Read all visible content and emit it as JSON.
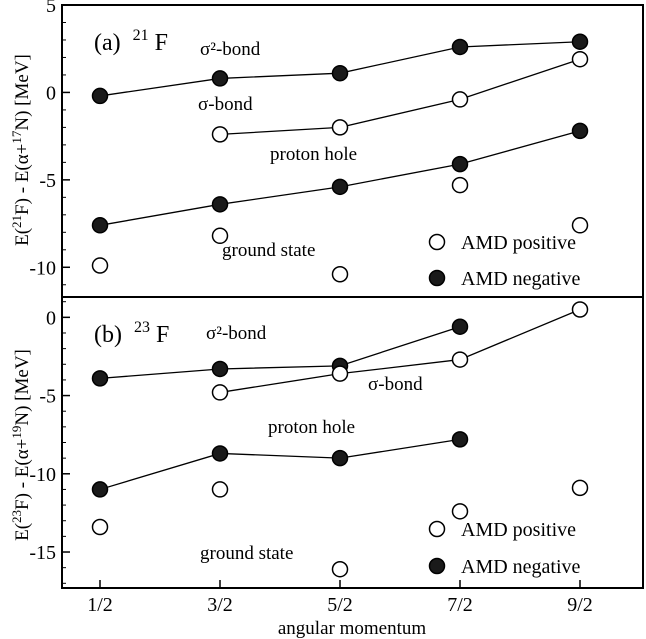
{
  "chart_data": {
    "type": "line",
    "xlabel": "angular momentum",
    "x_categories": [
      "1/2",
      "3/2",
      "5/2",
      "7/2",
      "9/2"
    ],
    "x_values": [
      0.5,
      1.5,
      2.5,
      3.5,
      4.5
    ],
    "legend": {
      "positive": "AMD positive",
      "negative": "AMD negative",
      "placement": "bottom-right"
    },
    "panels": [
      {
        "panel_label": "(a)",
        "nucleus_mass": "21",
        "nucleus_symbol": "F",
        "ylabel": {
          "p1": "E(",
          "sup1": "21",
          "p2": "F) - E(α+",
          "sup2": "17",
          "p3": "N) [MeV]"
        },
        "ylim": [
          -11.7,
          5
        ],
        "yticks": [
          5,
          0,
          -5,
          -10
        ],
        "series": [
          {
            "name": "σ²-bond",
            "filled": true,
            "connected": true,
            "points": [
              [
                0.5,
                -0.2
              ],
              [
                1.5,
                0.8
              ],
              [
                2.5,
                1.1
              ],
              [
                3.5,
                2.6
              ],
              [
                4.5,
                2.9
              ]
            ]
          },
          {
            "name": "σ-bond",
            "filled": false,
            "connected": true,
            "points": [
              [
                1.5,
                -2.4
              ],
              [
                2.5,
                -2.0
              ],
              [
                3.5,
                -0.4
              ],
              [
                4.5,
                1.9
              ]
            ]
          },
          {
            "name": "proton hole",
            "filled": true,
            "connected": true,
            "points": [
              [
                0.5,
                -7.6
              ],
              [
                1.5,
                -6.4
              ],
              [
                2.5,
                -5.4
              ],
              [
                3.5,
                -4.1
              ],
              [
                4.5,
                -2.2
              ]
            ]
          },
          {
            "name": "ground state",
            "filled": false,
            "connected": false,
            "points": [
              [
                0.5,
                -9.9
              ],
              [
                1.5,
                -8.2
              ],
              [
                2.5,
                -10.4
              ],
              [
                3.5,
                -5.3
              ],
              [
                4.5,
                -7.6
              ]
            ]
          }
        ]
      },
      {
        "panel_label": "(b)",
        "nucleus_mass": "23",
        "nucleus_symbol": "F",
        "ylabel": {
          "p1": "E(",
          "sup1": "23",
          "p2": "F) - E(α+",
          "sup2": "19",
          "p3": "N) [MeV]"
        },
        "ylim": [
          -17.3,
          1.3
        ],
        "yticks": [
          0,
          -5,
          -10,
          -15
        ],
        "series": [
          {
            "name": "σ²-bond",
            "filled": true,
            "connected": true,
            "points": [
              [
                0.5,
                -3.9
              ],
              [
                1.5,
                -3.3
              ],
              [
                2.5,
                -3.1
              ],
              [
                3.5,
                -0.6
              ]
            ]
          },
          {
            "name": "σ-bond",
            "filled": false,
            "connected": true,
            "points": [
              [
                1.5,
                -4.8
              ],
              [
                2.5,
                -3.6
              ],
              [
                3.5,
                -2.7
              ],
              [
                4.5,
                0.5
              ]
            ]
          },
          {
            "name": "proton hole",
            "filled": true,
            "connected": true,
            "points": [
              [
                0.5,
                -11.0
              ],
              [
                1.5,
                -8.7
              ],
              [
                2.5,
                -9.0
              ],
              [
                3.5,
                -7.8
              ]
            ]
          },
          {
            "name": "ground state",
            "filled": false,
            "connected": false,
            "points": [
              [
                0.5,
                -13.4
              ],
              [
                1.5,
                -11.0
              ],
              [
                2.5,
                -16.1
              ],
              [
                3.5,
                -12.4
              ],
              [
                4.5,
                -10.9
              ]
            ]
          }
        ]
      }
    ]
  }
}
